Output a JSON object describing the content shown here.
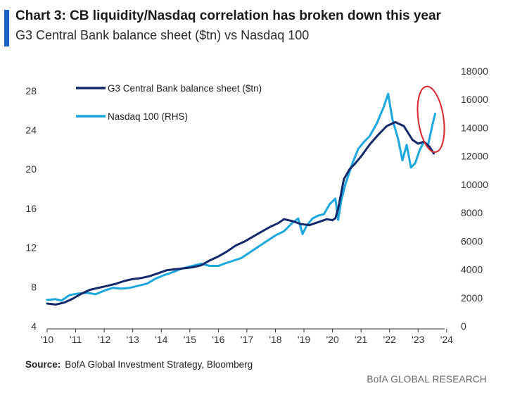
{
  "header": {
    "title": "Chart 3: CB liquidity/Nasdaq correlation has broken down this year",
    "subtitle": "G3 Central Bank balance sheet ($tn) vs Nasdaq 100"
  },
  "footer": {
    "source_label": "Source:",
    "source_text": "BofA Global Investment Strategy, Bloomberg",
    "brand": "BofA GLOBAL RESEARCH"
  },
  "colors": {
    "balance_sheet": "#14296b",
    "nasdaq": "#1ca7df",
    "highlight_circle": "#d9262c",
    "accent": "#1a63c7"
  },
  "chart_data": {
    "type": "line",
    "x_axis": {
      "range": [
        2010,
        2024.3
      ],
      "ticks": [
        2010,
        2011,
        2012,
        2013,
        2014,
        2015,
        2016,
        2017,
        2018,
        2019,
        2020,
        2021,
        2022,
        2023,
        2024
      ],
      "tick_labels": [
        "'10",
        "'11",
        "'12",
        "'13",
        "'14",
        "'15",
        "'16",
        "'17",
        "'18",
        "'19",
        "'20",
        "'21",
        "'22",
        "'23",
        "'24"
      ]
    },
    "y_left": {
      "range": [
        4,
        30
      ],
      "ticks": [
        4,
        8,
        12,
        16,
        20,
        24,
        28
      ],
      "tick_labels": [
        "4",
        "8",
        "12",
        "16",
        "20",
        "24",
        "28"
      ]
    },
    "y_right": {
      "range": [
        0,
        18000
      ],
      "ticks": [
        0,
        2000,
        4000,
        6000,
        8000,
        10000,
        12000,
        14000,
        16000,
        18000
      ],
      "tick_labels": [
        "0",
        "2000",
        "4000",
        "6000",
        "8000",
        "10000",
        "12000",
        "14000",
        "16000",
        "18000"
      ]
    },
    "grid": false,
    "legend_position": "top-left",
    "series": [
      {
        "name": "G3 Central Bank balance sheet ($tn)",
        "axis": "left",
        "x": [
          2010.0,
          2010.3,
          2010.6,
          2010.9,
          2011.2,
          2011.5,
          2011.8,
          2012.1,
          2012.4,
          2012.7,
          2013.0,
          2013.3,
          2013.6,
          2013.9,
          2014.2,
          2014.5,
          2014.8,
          2015.1,
          2015.4,
          2015.7,
          2016.0,
          2016.3,
          2016.6,
          2016.9,
          2017.2,
          2017.5,
          2017.8,
          2018.1,
          2018.3,
          2018.6,
          2018.9,
          2019.2,
          2019.5,
          2019.8,
          2020.0,
          2020.1,
          2020.2,
          2020.3,
          2020.4,
          2020.6,
          2020.8,
          2021.0,
          2021.3,
          2021.6,
          2021.9,
          2022.2,
          2022.5,
          2022.8,
          2023.0,
          2023.2,
          2023.4,
          2023.55
        ],
        "y": [
          6.3,
          6.2,
          6.4,
          6.8,
          7.3,
          7.7,
          7.9,
          8.1,
          8.3,
          8.6,
          8.8,
          8.9,
          9.1,
          9.4,
          9.7,
          9.8,
          9.9,
          10.0,
          10.2,
          10.7,
          11.1,
          11.6,
          12.2,
          12.6,
          13.1,
          13.6,
          14.1,
          14.5,
          14.9,
          14.7,
          14.4,
          14.3,
          14.6,
          14.9,
          14.8,
          15.0,
          16.0,
          17.5,
          19.0,
          20.0,
          20.6,
          21.3,
          22.5,
          23.5,
          24.4,
          24.8,
          24.4,
          23.0,
          22.6,
          22.8,
          22.3,
          21.6
        ]
      },
      {
        "name": "Nasdaq 100 (RHS)",
        "axis": "right",
        "x": [
          2010.0,
          2010.3,
          2010.5,
          2010.8,
          2011.1,
          2011.4,
          2011.7,
          2012.0,
          2012.3,
          2012.6,
          2012.9,
          2013.2,
          2013.5,
          2013.8,
          2014.1,
          2014.4,
          2014.7,
          2015.0,
          2015.4,
          2015.7,
          2016.0,
          2016.2,
          2016.5,
          2016.8,
          2017.1,
          2017.4,
          2017.7,
          2018.0,
          2018.3,
          2018.6,
          2018.8,
          2018.95,
          2019.1,
          2019.3,
          2019.5,
          2019.7,
          2019.9,
          2020.1,
          2020.2,
          2020.3,
          2020.45,
          2020.7,
          2020.9,
          2021.1,
          2021.3,
          2021.55,
          2021.8,
          2021.95,
          2022.1,
          2022.3,
          2022.45,
          2022.6,
          2022.75,
          2022.9,
          2023.05,
          2023.2,
          2023.35,
          2023.5,
          2023.6
        ],
        "y": [
          1850,
          1900,
          1800,
          2200,
          2300,
          2350,
          2250,
          2500,
          2700,
          2650,
          2700,
          2850,
          3000,
          3350,
          3600,
          3800,
          4050,
          4200,
          4400,
          4250,
          4250,
          4400,
          4600,
          4800,
          5200,
          5600,
          6000,
          6400,
          6700,
          7300,
          7600,
          6500,
          7100,
          7600,
          7800,
          7900,
          8600,
          9000,
          7500,
          8800,
          10000,
          11500,
          12500,
          13000,
          13400,
          14300,
          15500,
          16400,
          14600,
          13200,
          11700,
          12800,
          11200,
          11500,
          12400,
          13000,
          12800,
          14200,
          15000
        ]
      }
    ],
    "annotations": [
      {
        "type": "ellipse",
        "label": "",
        "x": 2023.45,
        "y_right": 14600
      }
    ]
  }
}
